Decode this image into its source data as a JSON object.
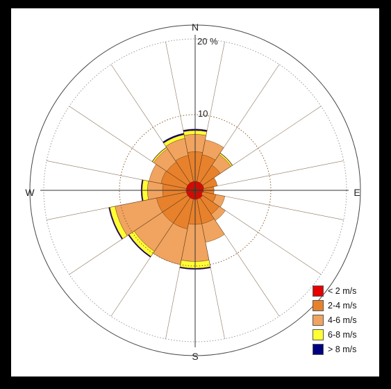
{
  "chart_data": {
    "type": "windrose",
    "title": "",
    "directions": [
      "N",
      "NNE",
      "NE",
      "ENE",
      "E",
      "ESE",
      "SE",
      "SSE",
      "S",
      "SSW",
      "SW",
      "WSW",
      "W",
      "WNW",
      "NW",
      "NNW"
    ],
    "direction_labels": [
      "N",
      "E",
      "S",
      "W"
    ],
    "radial_ticks": [
      "10",
      "20 %"
    ],
    "radial_tick_values": [
      10,
      20
    ],
    "radial_max": 20,
    "grid": true,
    "legend_position": "bottom-right",
    "series": [
      {
        "name": "< 2 m/s",
        "color": "#e60000",
        "values": [
          1.2,
          1.2,
          1.2,
          1.2,
          1.1,
          1.0,
          1.2,
          1.2,
          1.2,
          1.2,
          1.2,
          1.2,
          1.2,
          1.2,
          1.2,
          1.2
        ]
      },
      {
        "name": "2-4 m/s",
        "color": "#e8812c",
        "values": [
          3.9,
          3.6,
          2.8,
          1.8,
          1.4,
          1.8,
          2.6,
          3.3,
          3.3,
          4.0,
          4.0,
          4.0,
          3.1,
          3.4,
          3.3,
          3.5
        ]
      },
      {
        "name": "4-6 m/s",
        "color": "#f0a460",
        "values": [
          2.3,
          2.0,
          1.7,
          0.0,
          0.0,
          1.2,
          1.0,
          2.5,
          4.9,
          4.8,
          4.5,
          5.6,
          2.0,
          1.6,
          2.1,
          2.3
        ]
      },
      {
        "name": "6-8 m/s",
        "color": "#ffff33",
        "values": [
          0.5,
          0.0,
          0.2,
          0.0,
          0.0,
          0.0,
          0.0,
          0.0,
          0.9,
          0.0,
          0.8,
          0.7,
          0.7,
          0.0,
          0.2,
          0.5
        ]
      },
      {
        "name": "> 8 m/s",
        "color": "#000080",
        "values": [
          0.2,
          0.0,
          0.05,
          0.0,
          0.0,
          0.0,
          0.0,
          0.0,
          0.15,
          0.0,
          0.15,
          0.15,
          0.15,
          0.0,
          0.05,
          0.2
        ]
      }
    ]
  }
}
